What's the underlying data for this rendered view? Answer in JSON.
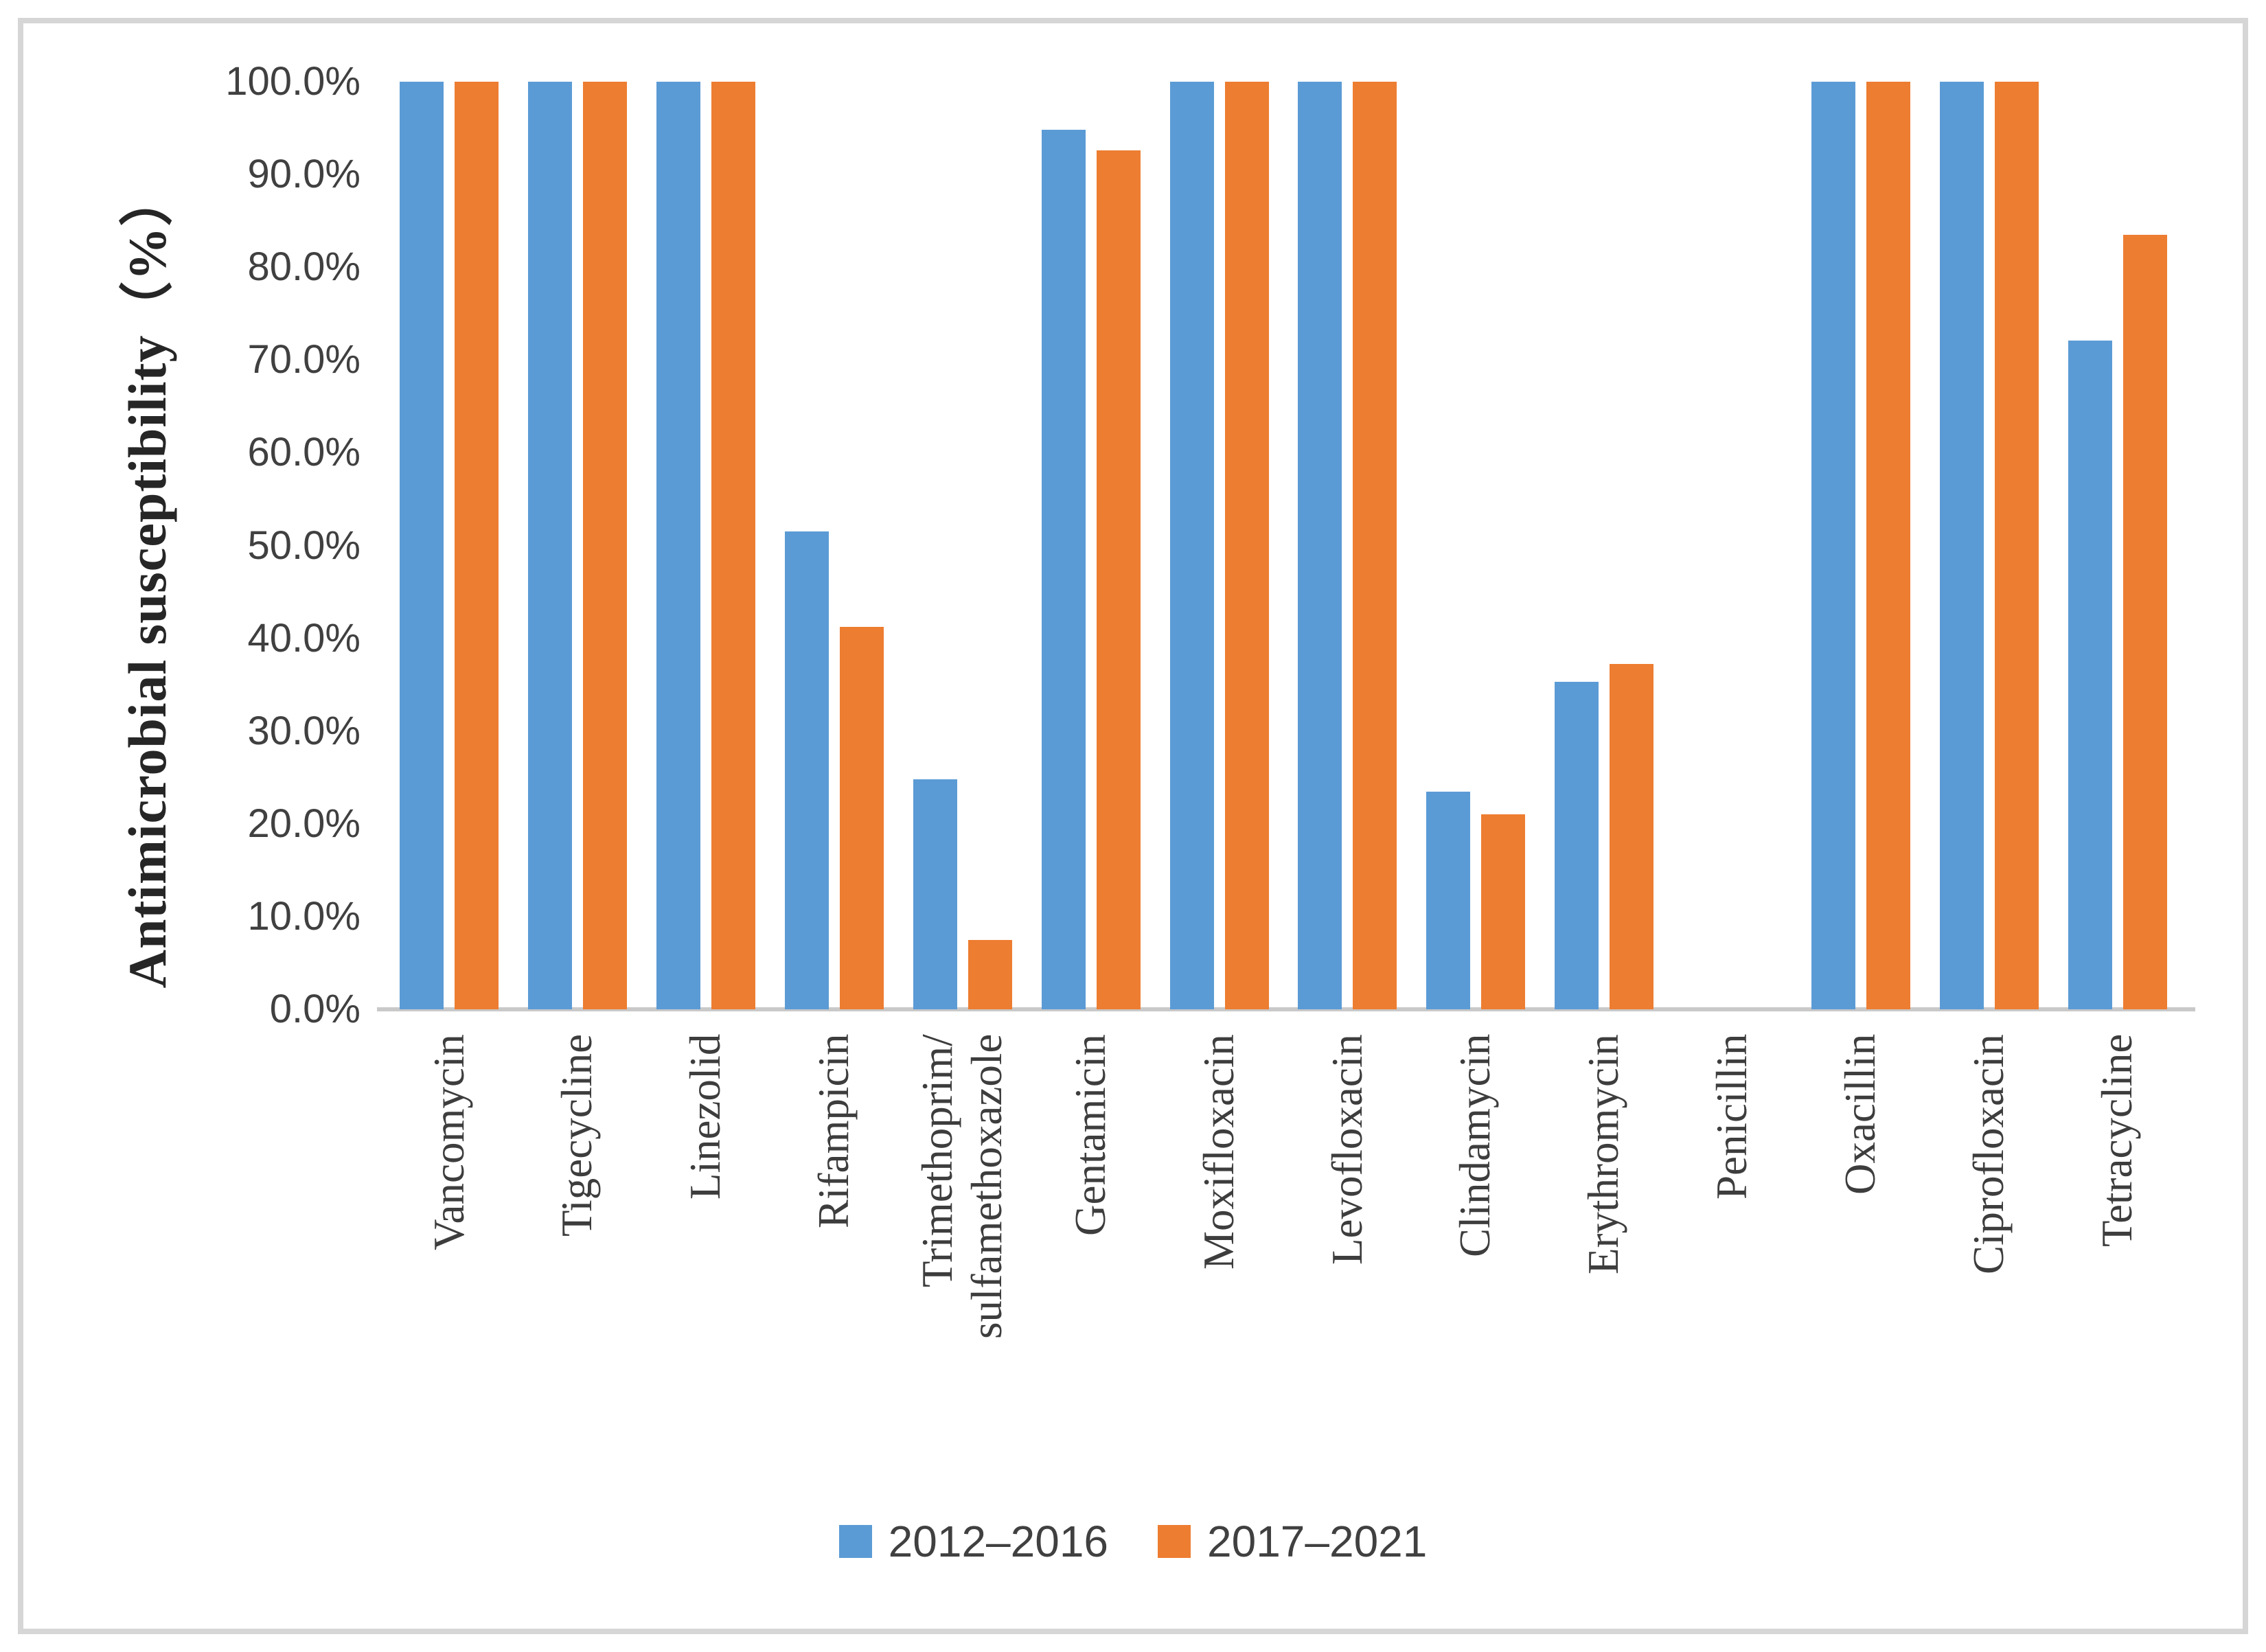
{
  "chart_data": {
    "type": "bar",
    "title": "",
    "xlabel": "",
    "ylabel": "Antimicrobial susceptibility（%）",
    "ylim": [
      0,
      100
    ],
    "ytick_step": 10,
    "yticks": [
      "0.0%",
      "10.0%",
      "20.0%",
      "30.0%",
      "40.0%",
      "50.0%",
      "60.0%",
      "70.0%",
      "80.0%",
      "90.0%",
      "100.0%"
    ],
    "grid": false,
    "legend_position": "bottom-center",
    "categories": [
      "Vancomycin",
      "Tigecycline",
      "Linezolid",
      "Rifampicin",
      "Trimethoprim/\nsulfamethoxazole",
      "Gentamicin",
      "Moxifloxacin",
      "Levofloxacin",
      "Clindamycin",
      "Erythromycin",
      "Penicillin",
      "Oxacillin",
      "Ciprofloxacin",
      "Tetracycline"
    ],
    "series": [
      {
        "name": "2012–2016",
        "color": "#5B9BD5",
        "values": [
          100.0,
          100.0,
          100.0,
          51.5,
          24.8,
          94.8,
          100.0,
          100.0,
          23.5,
          35.3,
          0.0,
          100.0,
          100.0,
          72.1
        ]
      },
      {
        "name": "2017–2021",
        "color": "#ED7D31",
        "values": [
          100.0,
          100.0,
          100.0,
          41.2,
          7.5,
          92.6,
          100.0,
          100.0,
          21.0,
          37.2,
          0.0,
          100.0,
          100.0,
          83.5
        ]
      }
    ],
    "colors": {
      "axis_line": "#c9c9c9",
      "tick_text": "#404040",
      "figure_border": "#d6d6d6"
    }
  }
}
